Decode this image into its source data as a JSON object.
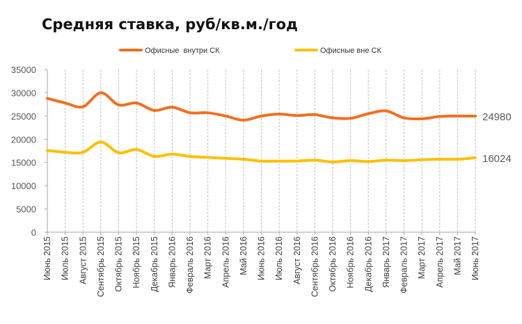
{
  "chart_data": {
    "type": "line",
    "title": "Средняя ставка, руб/кв.м./год",
    "xlabel": "",
    "ylabel": "",
    "ylim": [
      0,
      35000
    ],
    "yticks": [
      0,
      5000,
      10000,
      15000,
      20000,
      25000,
      30000,
      35000
    ],
    "grid": {
      "vertical": true,
      "horizontal": false
    },
    "legend": "top",
    "categories": [
      "Июнь 2015",
      "Июль 2015",
      "Август 2015",
      "Сентябрь 2015",
      "Октябрь 2015",
      "Ноябрь 2015",
      "Декабрь 2015",
      "Январь 2016",
      "Февраль 2016",
      "Март 2016",
      "Апрель 2016",
      "Май 2016",
      "Июнь 2016",
      "Июль 2016",
      "Август 2016",
      "Сентябрь 2016",
      "Октябрь 2016",
      "Ноябрь 2016",
      "Декабрь 2016",
      "Январь 2017",
      "Февраль 2017",
      "Март 2017",
      "Апрель 2017",
      "Май 2017",
      "Июнь 2017"
    ],
    "series": [
      {
        "name": "Офисные  внутри СК",
        "color": "#F07020",
        "values": [
          28800,
          27800,
          27000,
          30000,
          27400,
          27800,
          26200,
          26900,
          25700,
          25700,
          25000,
          24100,
          25000,
          25400,
          25100,
          25300,
          24600,
          24500,
          25500,
          26100,
          24600,
          24400,
          24900,
          25000,
          24980
        ],
        "end_label": "24980"
      },
      {
        "name": "Офисные вне СК",
        "color": "#FFC000",
        "values": [
          17600,
          17200,
          17200,
          19400,
          17100,
          17800,
          16300,
          16800,
          16300,
          16100,
          15900,
          15700,
          15300,
          15300,
          15300,
          15500,
          15100,
          15400,
          15200,
          15500,
          15400,
          15600,
          15700,
          15700,
          16024
        ],
        "end_label": "16024"
      }
    ]
  }
}
